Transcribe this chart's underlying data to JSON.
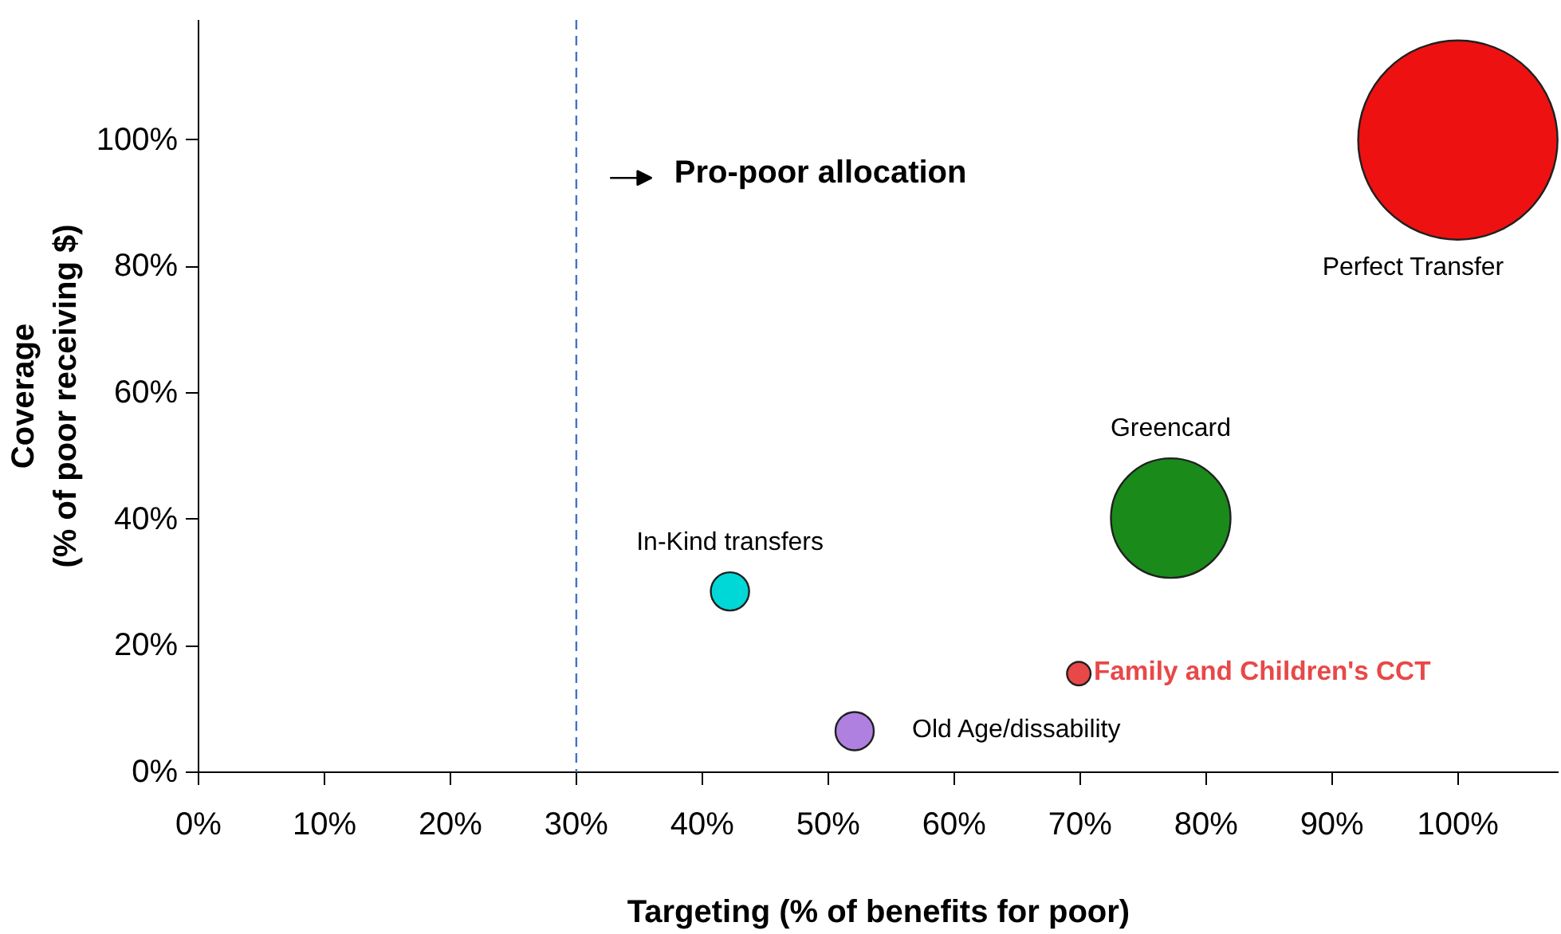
{
  "chart_data": {
    "type": "bubble",
    "xlabel": "Targeting (% of benefits for poor)",
    "ylabel": "Coverage\n(% of poor receiving $)",
    "annotations": [
      "Pro-poor allocation"
    ],
    "xlim": [
      0,
      108
    ],
    "ylim": [
      0,
      119
    ],
    "xticks": [
      {
        "value": 0,
        "label": "0%"
      },
      {
        "value": 10,
        "label": "10%"
      },
      {
        "value": 20,
        "label": "20%"
      },
      {
        "value": 30,
        "label": "30%"
      },
      {
        "value": 40,
        "label": "40%"
      },
      {
        "value": 50,
        "label": "50%"
      },
      {
        "value": 60,
        "label": "60%"
      },
      {
        "value": 70,
        "label": "70%"
      },
      {
        "value": 80,
        "label": "80%"
      },
      {
        "value": 90,
        "label": "90%"
      },
      {
        "value": 100,
        "label": "100%"
      }
    ],
    "yticks": [
      {
        "value": 0,
        "label": "0%"
      },
      {
        "value": 20,
        "label": "20%"
      },
      {
        "value": 40,
        "label": "40%"
      },
      {
        "value": 60,
        "label": "60%"
      },
      {
        "value": 80,
        "label": "80%"
      },
      {
        "value": 100,
        "label": "100%"
      }
    ],
    "grid": false,
    "ref_lines": [
      {
        "axis": "x",
        "value": 30,
        "color": "#4472c4",
        "line_style": "dashed"
      }
    ],
    "series": [
      {
        "name": "In-Kind transfers",
        "color": "#00d8d8",
        "x": [
          42.2
        ],
        "values": [
          28.6
        ],
        "sizes": [
          0.037
        ]
      },
      {
        "name": "Old Age/dissability",
        "color": "#b080e0",
        "x": [
          52.1
        ],
        "values": [
          6.5
        ],
        "sizes": [
          0.037
        ]
      },
      {
        "name": "Family and Children's CCT",
        "color": "#e84848",
        "x": [
          69.9
        ],
        "values": [
          15.6
        ],
        "sizes": [
          0.014
        ]
      },
      {
        "name": "Greencard",
        "color": "#1a8a1a",
        "x": [
          77.2
        ],
        "values": [
          40.2
        ],
        "sizes": [
          0.36
        ]
      },
      {
        "name": "Perfect Transfer",
        "color": "#ee1111",
        "x": [
          100
        ],
        "values": [
          100
        ],
        "sizes": [
          1
        ]
      }
    ]
  }
}
